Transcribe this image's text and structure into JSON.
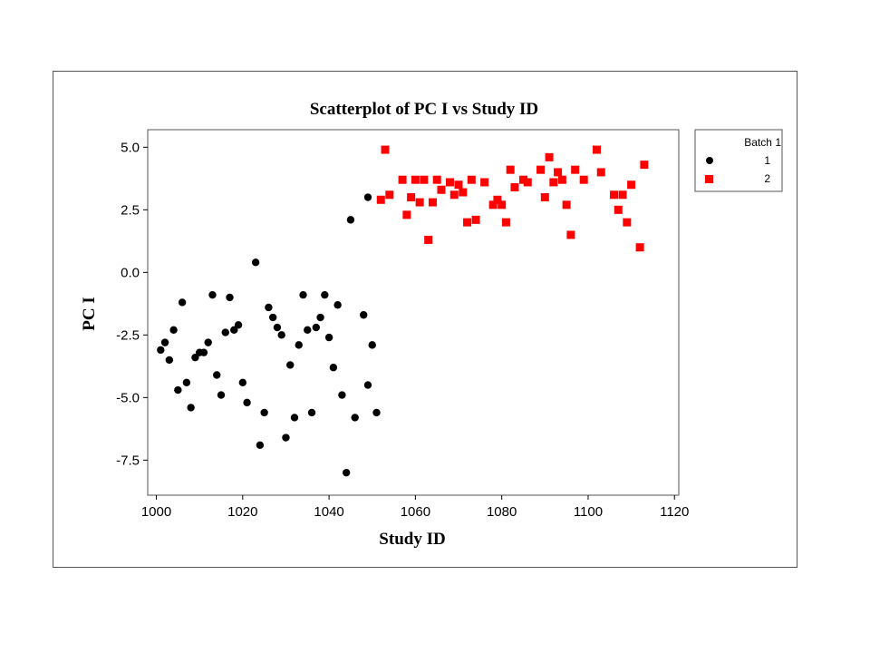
{
  "chart_data": {
    "type": "scatter",
    "title": "Scatterplot of PC I vs Study ID",
    "xlabel": "Study ID",
    "ylabel": "PC I",
    "xlim": [
      998,
      1121
    ],
    "ylim": [
      -8.9,
      5.7
    ],
    "x_ticks": [
      1000,
      1020,
      1040,
      1060,
      1080,
      1100,
      1120
    ],
    "x_tick_labels": [
      "1000",
      "1020",
      "1040",
      "1060",
      "1080",
      "1100",
      "1120"
    ],
    "y_ticks": [
      5.0,
      2.5,
      0.0,
      -2.5,
      -5.0,
      -7.5
    ],
    "y_tick_labels": [
      "5.0",
      "2.5",
      "0.0",
      "-2.5",
      "-5.0",
      "-7.5"
    ],
    "grid": false,
    "legend": {
      "title": "Batch 1",
      "placement": "right",
      "entries": [
        "1",
        "2"
      ]
    },
    "series": [
      {
        "name": "1",
        "marker": "circle",
        "color": "#000000",
        "points": [
          [
            1001,
            -3.1
          ],
          [
            1002,
            -2.8
          ],
          [
            1003,
            -3.5
          ],
          [
            1004,
            -2.3
          ],
          [
            1005,
            -4.7
          ],
          [
            1006,
            -1.2
          ],
          [
            1007,
            -4.4
          ],
          [
            1008,
            -5.4
          ],
          [
            1009,
            -3.4
          ],
          [
            1010,
            -3.2
          ],
          [
            1011,
            -3.2
          ],
          [
            1012,
            -2.8
          ],
          [
            1013,
            -0.9
          ],
          [
            1014,
            -4.1
          ],
          [
            1015,
            -4.9
          ],
          [
            1016,
            -2.4
          ],
          [
            1017,
            -1.0
          ],
          [
            1018,
            -2.3
          ],
          [
            1019,
            -2.1
          ],
          [
            1020,
            -4.4
          ],
          [
            1021,
            -5.2
          ],
          [
            1023,
            0.4
          ],
          [
            1024,
            -6.9
          ],
          [
            1025,
            -5.6
          ],
          [
            1026,
            -1.4
          ],
          [
            1027,
            -1.8
          ],
          [
            1028,
            -2.2
          ],
          [
            1029,
            -2.5
          ],
          [
            1030,
            -6.6
          ],
          [
            1031,
            -3.7
          ],
          [
            1032,
            -5.8
          ],
          [
            1033,
            -2.9
          ],
          [
            1034,
            -0.9
          ],
          [
            1035,
            -2.3
          ],
          [
            1036,
            -5.6
          ],
          [
            1037,
            -2.2
          ],
          [
            1038,
            -1.8
          ],
          [
            1039,
            -0.9
          ],
          [
            1040,
            -2.6
          ],
          [
            1041,
            -3.8
          ],
          [
            1042,
            -1.3
          ],
          [
            1043,
            -4.9
          ],
          [
            1044,
            -8.0
          ],
          [
            1045,
            2.1
          ],
          [
            1046,
            -5.8
          ],
          [
            1048,
            -1.7
          ],
          [
            1049,
            -4.5
          ],
          [
            1049,
            3.0
          ],
          [
            1050,
            -2.9
          ],
          [
            1051,
            -5.6
          ]
        ]
      },
      {
        "name": "2",
        "marker": "square",
        "color": "#ff0000",
        "points": [
          [
            1052,
            2.9
          ],
          [
            1053,
            4.9
          ],
          [
            1054,
            3.1
          ],
          [
            1057,
            3.7
          ],
          [
            1058,
            2.3
          ],
          [
            1059,
            3.0
          ],
          [
            1060,
            3.7
          ],
          [
            1061,
            2.8
          ],
          [
            1062,
            3.7
          ],
          [
            1063,
            1.3
          ],
          [
            1064,
            2.8
          ],
          [
            1065,
            3.7
          ],
          [
            1066,
            3.3
          ],
          [
            1068,
            3.6
          ],
          [
            1069,
            3.1
          ],
          [
            1070,
            3.5
          ],
          [
            1071,
            3.2
          ],
          [
            1072,
            2.0
          ],
          [
            1073,
            3.7
          ],
          [
            1074,
            2.1
          ],
          [
            1076,
            3.6
          ],
          [
            1078,
            2.7
          ],
          [
            1079,
            2.9
          ],
          [
            1080,
            2.7
          ],
          [
            1081,
            2.0
          ],
          [
            1082,
            4.1
          ],
          [
            1083,
            3.4
          ],
          [
            1085,
            3.7
          ],
          [
            1086,
            3.6
          ],
          [
            1089,
            4.1
          ],
          [
            1090,
            3.0
          ],
          [
            1091,
            4.6
          ],
          [
            1092,
            3.6
          ],
          [
            1093,
            4.0
          ],
          [
            1094,
            3.7
          ],
          [
            1095,
            2.7
          ],
          [
            1096,
            1.5
          ],
          [
            1097,
            4.1
          ],
          [
            1099,
            3.7
          ],
          [
            1102,
            4.9
          ],
          [
            1103,
            4.0
          ],
          [
            1106,
            3.1
          ],
          [
            1107,
            2.5
          ],
          [
            1108,
            3.1
          ],
          [
            1109,
            2.0
          ],
          [
            1110,
            3.5
          ],
          [
            1112,
            1.0
          ],
          [
            1113,
            4.3
          ]
        ]
      }
    ]
  }
}
